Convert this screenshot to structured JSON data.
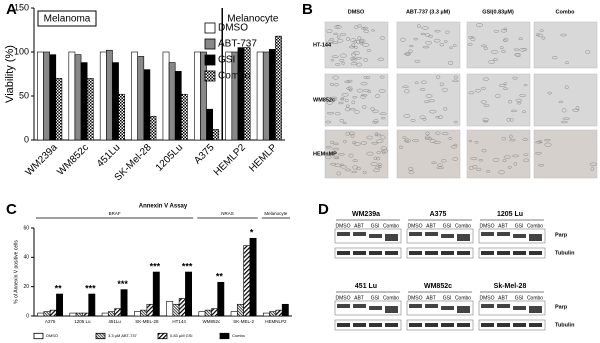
{
  "panel_labels": [
    "A",
    "B",
    "C",
    "D"
  ],
  "chart_data": [
    {
      "type": "bar",
      "y_label": "Viability (%)",
      "annotations": [
        "Melanoma",
        "Melanocyte"
      ],
      "categories": [
        "WM239a",
        "WM852c",
        "451Lu",
        "SK-Mel-28",
        "1205Lu",
        "A375",
        "HEMLP2",
        "HEMLP"
      ],
      "series": [
        {
          "name": "DMSO",
          "color": "#ffffff",
          "values": [
            100,
            100,
            100,
            100,
            100,
            100,
            100,
            100
          ]
        },
        {
          "name": "ABT-737",
          "color": "#888888",
          "values": [
            100,
            97,
            102,
            95,
            88,
            100,
            100,
            100
          ]
        },
        {
          "name": "GSI",
          "color": "#000000",
          "values": [
            97,
            88,
            88,
            80,
            78,
            35,
            105,
            103
          ]
        },
        {
          "name": "Combo",
          "color": "#000000",
          "pattern": "checker",
          "values": [
            70,
            70,
            52,
            27,
            52,
            12,
            105,
            118
          ]
        }
      ],
      "ylim": [
        0,
        150
      ],
      "yticks": [
        0,
        50,
        100,
        150
      ],
      "legend": "upper right"
    },
    {
      "type": "bar",
      "title": "Annexin V Assay",
      "y_label": "% of Annexin V positive cells",
      "group_labels": [
        "BRAF",
        "NRAS",
        "Melanocyte"
      ],
      "annotations": [
        "**",
        "***",
        "***",
        "***",
        "***",
        "**",
        "*"
      ],
      "categories": [
        "A375",
        "1205 Lu",
        "451Lu",
        "SK-MEL-28",
        "HT144",
        "WM852c",
        "SK-MEL-2",
        "HEMNLP2"
      ],
      "series": [
        {
          "name": "DMSO",
          "color": "#ffffff",
          "values": [
            2,
            2,
            2,
            3,
            10,
            3,
            3,
            2
          ]
        },
        {
          "name": "3.3 µM ABT-737",
          "color": "#000000",
          "pattern": "stripe-dense",
          "values": [
            3,
            2,
            3,
            4,
            8,
            4,
            8,
            3
          ]
        },
        {
          "name": "0.83 µM GSI",
          "color": "#000000",
          "pattern": "stripe",
          "values": [
            4,
            2,
            5,
            8,
            12,
            5,
            48,
            4
          ]
        },
        {
          "name": "Combo",
          "color": "#000000",
          "values": [
            15,
            15,
            18,
            30,
            30,
            23,
            53,
            8
          ]
        }
      ],
      "ylim": [
        0,
        60
      ],
      "yticks": [
        0,
        20,
        40,
        60
      ],
      "legend": "bottom"
    }
  ],
  "micrographs": {
    "columns": [
      "DMSO",
      "ABT-737 (3.3 µM)",
      "GSI(0.83µM)",
      "Combo"
    ],
    "rows": [
      "HT-144",
      "WM852c",
      "HEMnMP"
    ]
  },
  "western_blot": {
    "rows": [
      {
        "groups": [
          {
            "name": "WM239a",
            "lanes": [
              "DMSO",
              "ABT",
              "GSI",
              "Combo"
            ]
          },
          {
            "name": "A375",
            "lanes": [
              "DMSO",
              "ABT",
              "GSI",
              "Combo"
            ]
          },
          {
            "name": "1205 Lu",
            "lanes": [
              "DMSO",
              "ABT",
              "GSI",
              "Combo"
            ]
          }
        ],
        "bands": [
          "Parp",
          "Tubulin"
        ]
      },
      {
        "groups": [
          {
            "name": "451 Lu",
            "lanes": [
              "DMSO",
              "ABT",
              "GSI",
              "Combo"
            ]
          },
          {
            "name": "WM852c",
            "lanes": [
              "DMSO",
              "ABT",
              "GSI",
              "Combo"
            ]
          },
          {
            "name": "Sk-Mel-28",
            "lanes": [
              "DMSO",
              "ABT",
              "GSI",
              "Combo"
            ]
          }
        ],
        "bands": [
          "Parp",
          "Tubulin"
        ]
      }
    ]
  }
}
